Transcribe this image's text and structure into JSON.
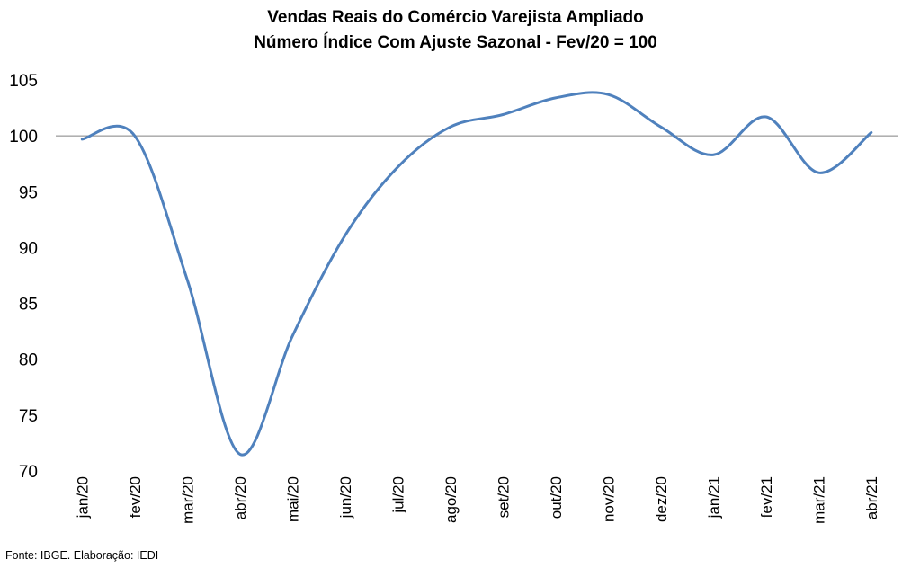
{
  "chart_data": {
    "type": "line",
    "title_line1": "Vendas Reais do Comércio Varejista Ampliado",
    "title_line2": "Número Índice Com Ajuste Sazonal - Fev/20 = 100",
    "categories": [
      "jan/20",
      "fev/20",
      "mar/20",
      "abr/20",
      "mai/20",
      "jun/20",
      "jul/20",
      "ago/20",
      "set/20",
      "out/20",
      "nov/20",
      "dez/20",
      "jan/21",
      "fev/21",
      "mar/21",
      "abr/21"
    ],
    "series": [
      {
        "name": "Vendas Reais do Comércio Varejista Ampliado",
        "values": [
          99.7,
          100.0,
          87.1,
          71.5,
          82.1,
          91.1,
          97.2,
          100.8,
          101.9,
          103.4,
          103.7,
          100.8,
          98.3,
          101.7,
          96.7,
          100.3
        ]
      }
    ],
    "yticks": [
      "105",
      "100",
      "95",
      "90",
      "85",
      "80",
      "75",
      "70"
    ],
    "ylim": [
      70,
      105
    ],
    "reference_line": 100,
    "xlabel": "",
    "ylabel": "",
    "grid": false,
    "legend": "none",
    "line_color": "#4f81bd",
    "reference_color": "#808080"
  },
  "source_note": "Fonte: IBGE. Elaboração: IEDI"
}
